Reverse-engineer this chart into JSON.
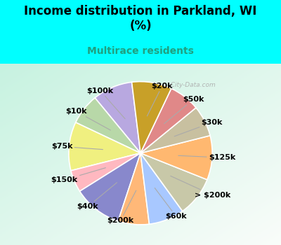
{
  "title": "Income distribution in Parkland, WI\n(%)",
  "subtitle": "Multirace residents",
  "background_outer": "#00FFFF",
  "background_chart_tl": "#C8EFE0",
  "background_chart_br": "#E8F8F0",
  "labels": [
    "$100k",
    "$10k",
    "$75k",
    "$150k",
    "$40k",
    "$200k",
    "$60k",
    "> $200k",
    "$125k",
    "$30k",
    "$50k",
    "$20k"
  ],
  "sizes": [
    9,
    7,
    11,
    5,
    11,
    7,
    8,
    9,
    10,
    7,
    7,
    9
  ],
  "colors": [
    "#B8A8E0",
    "#B8D8A8",
    "#F0F080",
    "#FFB8C0",
    "#8888CC",
    "#FFB878",
    "#A8C8FF",
    "#C8C8A8",
    "#FFB870",
    "#C8C0A0",
    "#E08888",
    "#C8A028"
  ],
  "wedge_edge_color": "white",
  "title_fontsize": 12,
  "subtitle_fontsize": 10,
  "subtitle_color": "#20A080",
  "watermark": "City-Data.com",
  "startangle": 97,
  "label_fontsize": 8
}
